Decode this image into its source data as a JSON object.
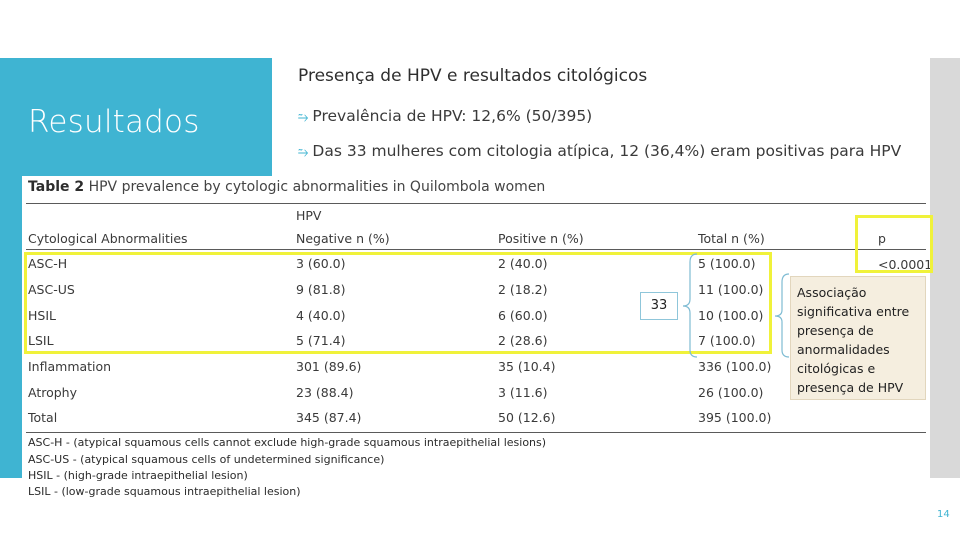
{
  "section_title": "Resultados",
  "slide_title": "Presença de HPV e resultados citológicos",
  "bullets": [
    "Prevalência de HPV: 12,6% (50/395)",
    "Das 33 mulheres com citologia atípica, 12 (36,4%) eram positivas para HPV"
  ],
  "bullet_icon": "curly-arrow-icon",
  "accent_color": "#3fb4d2",
  "highlight_color": "#f0f23a",
  "table": {
    "caption_label": "Table 2",
    "caption_text": "HPV prevalence by cytologic abnormalities in Quilombola women",
    "group_header": "HPV",
    "headers": [
      "Cytological Abnormalities",
      "Negative n (%)",
      "Positive n (%)",
      "Total n (%)",
      "p"
    ],
    "rows": [
      [
        "ASC-H",
        "3 (60.0)",
        "2 (40.0)",
        "5 (100.0)"
      ],
      [
        "ASC-US",
        "9 (81.8)",
        "2 (18.2)",
        "11 (100.0)"
      ],
      [
        "HSIL",
        "4 (40.0)",
        "6 (60.0)",
        "10 (100.0)"
      ],
      [
        "LSIL",
        "5 (71.4)",
        "2 (28.6)",
        "7 (100.0)"
      ],
      [
        "Inflammation",
        "301 (89.6)",
        "35 (10.4)",
        "336 (100.0)"
      ],
      [
        "Atrophy",
        "23 (88.4)",
        "3 (11.6)",
        "26 (100.0)"
      ],
      [
        "Total",
        "345 (87.4)",
        "50 (12.6)",
        "395 (100.0)"
      ]
    ],
    "p_value": "<0.0001",
    "footnotes": [
      "ASC-H - (atypical squamous cells cannot exclude high-grade squamous intraepithelial lesions)",
      "ASC-US - (atypical squamous cells of undetermined significance)",
      "HSIL - (high-grade intraepithelial lesion)",
      "LSIL - (low-grade squamous intraepithelial lesion)"
    ]
  },
  "bracket_total": "33",
  "note_text": "Associação significativa entre presença de anormalidades citológicas e presença de HPV",
  "page_number": "14"
}
